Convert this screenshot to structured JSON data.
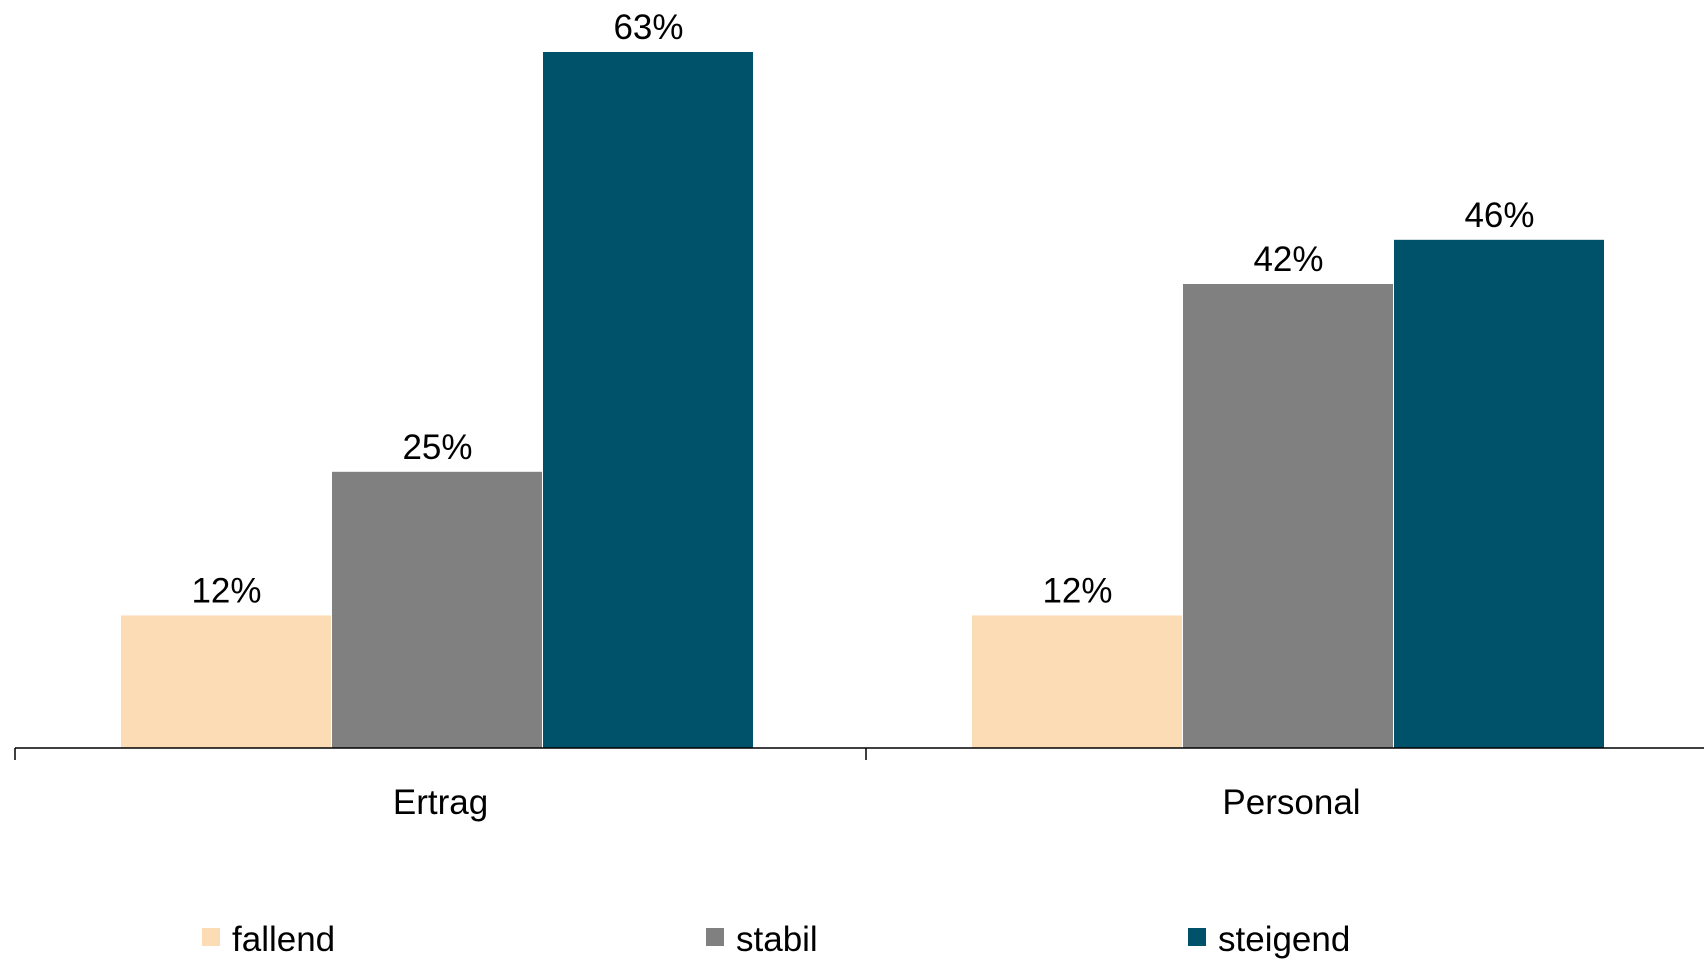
{
  "chart_data": {
    "type": "bar",
    "categories": [
      "Ertrag",
      "Personal"
    ],
    "series": [
      {
        "name": "fallend",
        "values": [
          12,
          12
        ],
        "color": "#FCDCB4"
      },
      {
        "name": "stabil",
        "values": [
          25,
          42
        ],
        "color": "#808080"
      },
      {
        "name": "steigend",
        "values": [
          63,
          46
        ],
        "color": "#00526B"
      }
    ],
    "data_labels": [
      [
        "12%",
        "12%"
      ],
      [
        "25%",
        "42%"
      ],
      [
        "63%",
        "46%"
      ]
    ],
    "title": "",
    "xlabel": "",
    "ylabel": "",
    "ylim": [
      0,
      63
    ],
    "grid": false,
    "legend_position": "bottom",
    "y_axis_visible": false
  }
}
